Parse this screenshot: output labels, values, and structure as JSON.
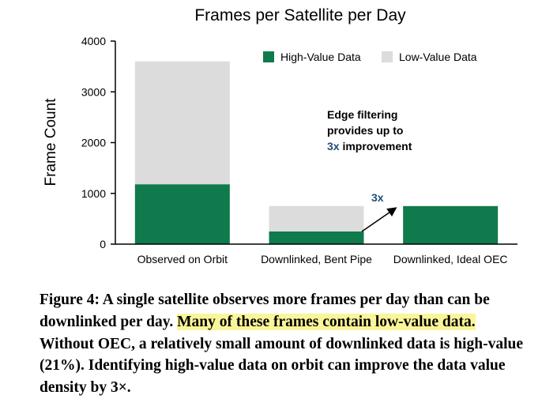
{
  "chart_data": {
    "type": "bar",
    "stacked": true,
    "title": "Frames per Satellite per Day",
    "xlabel": "",
    "ylabel": "Frame Count",
    "ylim": [
      0,
      4000
    ],
    "yticks": [
      "0",
      "1000",
      "2000",
      "3000",
      "4000"
    ],
    "grid": false,
    "legend_position": "top-right",
    "categories": [
      "Observed on Orbit",
      "Downlinked, Bent Pipe",
      "Downlinked, Ideal OEC"
    ],
    "series": [
      {
        "name": "High-Value Data",
        "color": "#0f7a4b",
        "values": [
          1180,
          250,
          750
        ]
      },
      {
        "name": "Low-Value Data",
        "color": "#dcdcdc",
        "values": [
          2420,
          500,
          0
        ]
      }
    ],
    "annotations": {
      "note_lines": [
        "Edge filtering",
        "provides up to"
      ],
      "note_emph": "3x",
      "note_rest": " improvement",
      "arrow_label": "3x",
      "emph_color": "#1f4e79"
    }
  },
  "caption": {
    "lead": "Figure 4: A single satellite observes more frames per day than can be downlinked per day.",
    "highlight": "Many of these frames contain low-value data.",
    "rest": "Without OEC, a relatively small amount of downlinked data is high-value (21%). Identifying high-value data on orbit can improve the data value density by 3×."
  }
}
